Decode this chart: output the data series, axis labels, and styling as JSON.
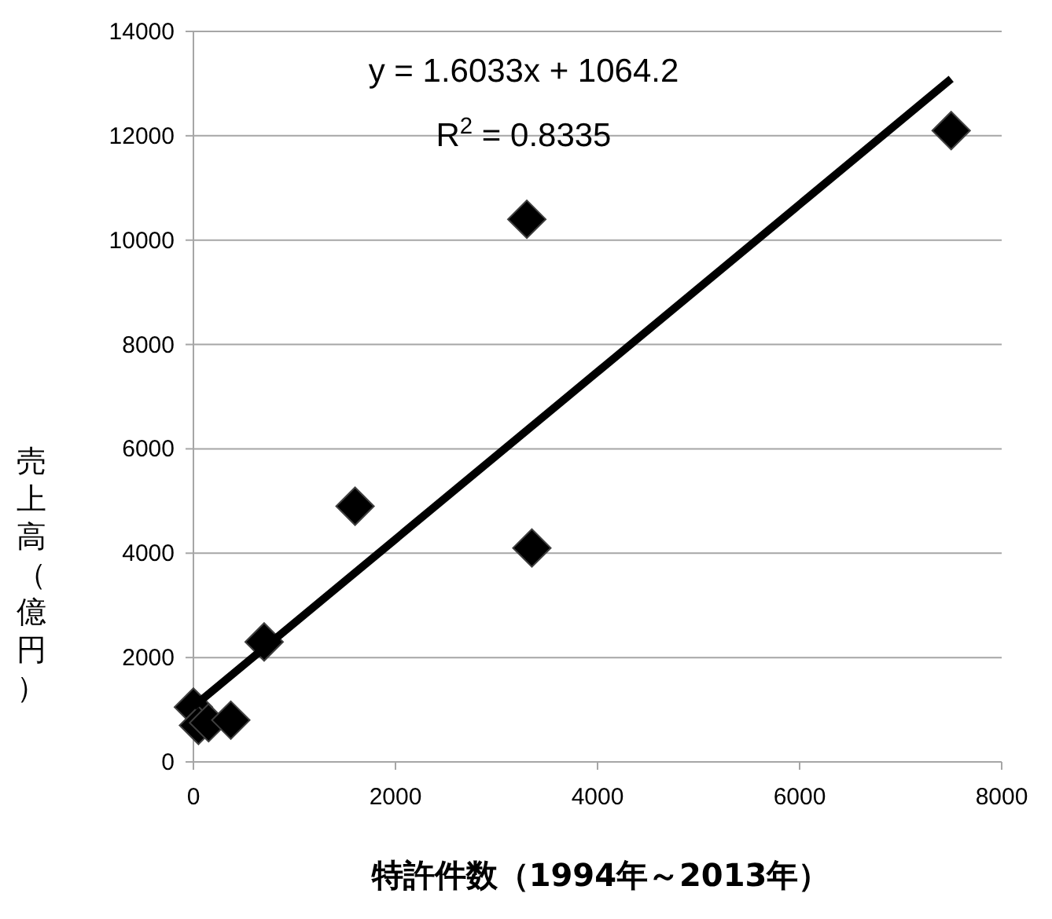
{
  "chart_data": {
    "type": "scatter",
    "xlabel": "特許件数（1994年～2013年）",
    "ylabel": "売上高（億円）",
    "xlim": [
      0,
      8000
    ],
    "xticks": [
      0,
      2000,
      4000,
      6000,
      8000
    ],
    "ylim": [
      0,
      14000
    ],
    "yticks": [
      0,
      2000,
      4000,
      6000,
      8000,
      10000,
      12000,
      14000
    ],
    "grid": "y",
    "marker": "diamond",
    "series": [
      {
        "color": "#000000",
        "x": [
          0,
          50,
          150,
          370,
          700,
          1600,
          3300,
          3350,
          7500
        ],
        "values": [
          1050,
          700,
          750,
          800,
          2300,
          4900,
          10400,
          4100,
          12100
        ]
      },
      {
        "type": "line",
        "marker": "none",
        "color": "#000000",
        "x": [
          0,
          7500
        ],
        "values": [
          1060,
          13090
        ]
      }
    ],
    "annotations": [
      "y = 1.6033x + 1064.2",
      "R$^{2}$ = 0.8335"
    ]
  }
}
